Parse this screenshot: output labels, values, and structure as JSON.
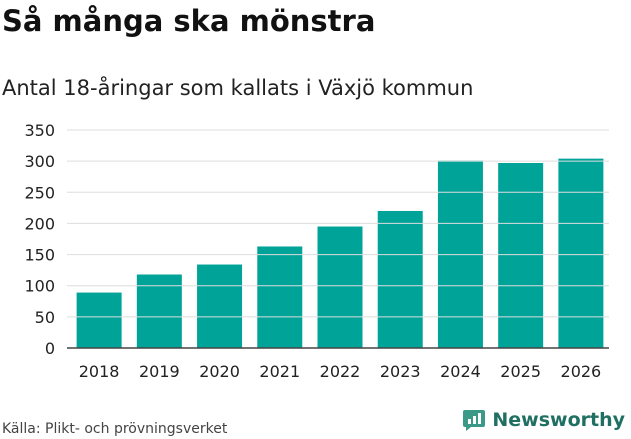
{
  "header": {
    "title": "Så många ska mönstra",
    "subtitle": "Antal 18-åringar som kallats i Växjö kommun"
  },
  "footer": {
    "source": "Källa: Plikt- och prövningsverket",
    "brand": "Newsworthy"
  },
  "colors": {
    "bar": "#00a398",
    "grid": "#dddddd",
    "brand": "#1f6f62"
  },
  "icons": {
    "brand": "newsworthy-logo-icon"
  },
  "chart_data": {
    "type": "bar",
    "title": "Antal 18-åringar som kallats i Växjö kommun",
    "xlabel": "",
    "ylabel": "",
    "categories": [
      "2018",
      "2019",
      "2020",
      "2021",
      "2022",
      "2023",
      "2024",
      "2025",
      "2026"
    ],
    "values": [
      89,
      118,
      134,
      163,
      195,
      220,
      301,
      297,
      304
    ],
    "ylim": [
      0,
      350
    ],
    "yticks": [
      0,
      50,
      100,
      150,
      200,
      250,
      300,
      350
    ],
    "grid": true,
    "legend": "none"
  }
}
